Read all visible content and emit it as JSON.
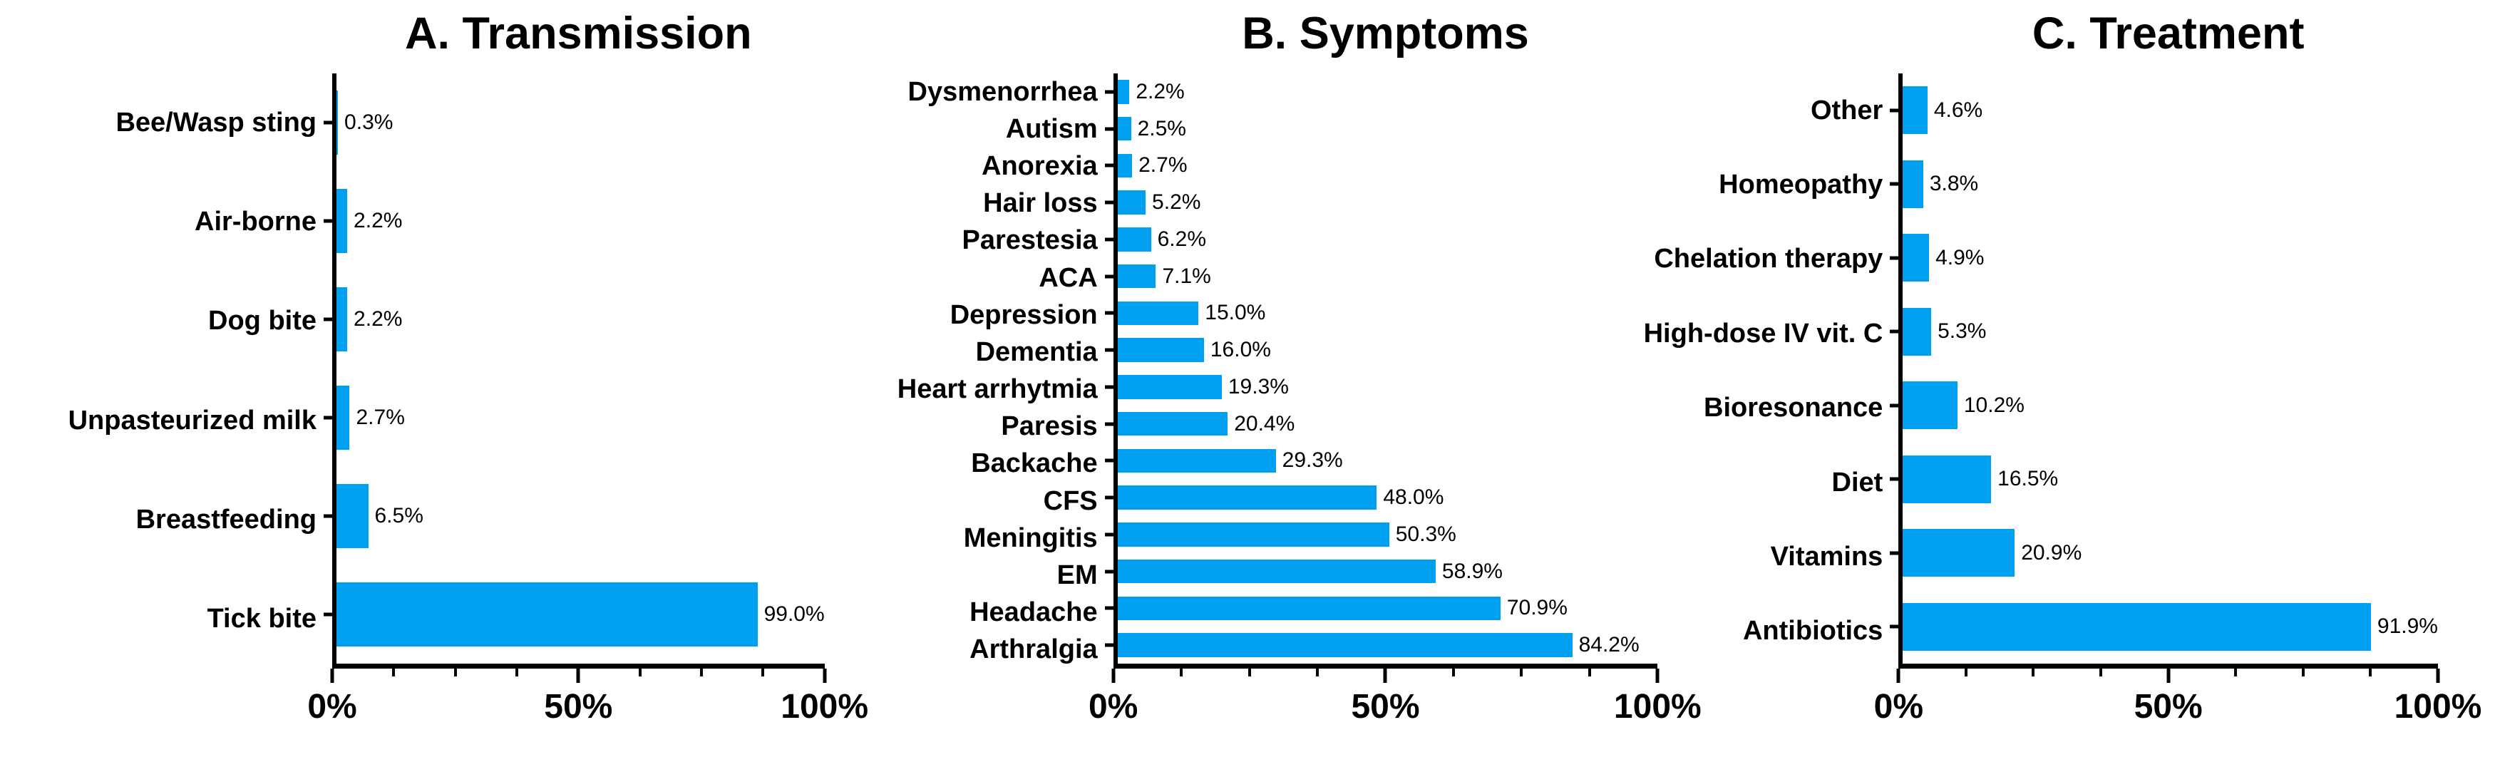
{
  "figure": {
    "bar_color": "#00A0F0",
    "axis_color": "#000000",
    "background_color": "#ffffff"
  },
  "chart_data": [
    {
      "type": "bar",
      "orientation": "horizontal",
      "title": "A. Transmission",
      "categories": [
        "Bee/Wasp sting",
        "Air-borne",
        "Dog bite",
        "Unpasteurized milk",
        "Breastfeeding",
        "Tick bite"
      ],
      "values": [
        0.3,
        2.2,
        2.2,
        2.7,
        6.5,
        99.0
      ],
      "data_labels": [
        "0.3%",
        "2.2%",
        "2.2%",
        "2.7%",
        "6.5%",
        "99.0%"
      ],
      "xlabel": "",
      "ylabel": "",
      "xlim": [
        0,
        100
      ],
      "grid": false,
      "bar_color": "#00A0F0",
      "x_ticks": [
        {
          "pos": 0,
          "label": "0%"
        },
        {
          "pos": 50,
          "label": "50%"
        },
        {
          "pos": 100,
          "label": "100%"
        }
      ],
      "minor_tick_positions": [
        12.5,
        25,
        37.5,
        62.5,
        75,
        87.5
      ]
    },
    {
      "type": "bar",
      "orientation": "horizontal",
      "title": "B. Symptoms",
      "categories": [
        "Dysmenorrhea",
        "Autism",
        "Anorexia",
        "Hair loss",
        "Parestesia",
        "ACA",
        "Depression",
        "Dementia",
        "Heart arrhytmia",
        "Paresis",
        "Backache",
        "CFS",
        "Meningitis",
        "EM",
        "Headache",
        "Arthralgia"
      ],
      "values": [
        2.2,
        2.5,
        2.7,
        5.2,
        6.2,
        7.1,
        15.0,
        16.0,
        19.3,
        20.4,
        29.3,
        48.0,
        50.3,
        58.9,
        70.9,
        84.2
      ],
      "data_labels": [
        "2.2%",
        "2.5%",
        "2.7%",
        "5.2%",
        "6.2%",
        "7.1%",
        "15.0%",
        "16.0%",
        "19.3%",
        "20.4%",
        "29.3%",
        "48.0%",
        "50.3%",
        "58.9%",
        "70.9%",
        "84.2%"
      ],
      "xlabel": "",
      "ylabel": "",
      "xlim": [
        0,
        100
      ],
      "grid": false,
      "bar_color": "#00A0F0",
      "x_ticks": [
        {
          "pos": 0,
          "label": "0%"
        },
        {
          "pos": 50,
          "label": "50%"
        },
        {
          "pos": 100,
          "label": "100%"
        }
      ],
      "minor_tick_positions": [
        12.5,
        25,
        37.5,
        62.5,
        75,
        87.5
      ]
    },
    {
      "type": "bar",
      "orientation": "horizontal",
      "title": "C. Treatment",
      "categories": [
        "Other",
        "Homeopathy",
        "Chelation therapy",
        "High-dose IV vit. C",
        "Bioresonance",
        "Diet",
        "Vitamins",
        "Antibiotics"
      ],
      "values": [
        4.6,
        3.8,
        4.9,
        5.3,
        10.2,
        16.5,
        20.9,
        91.9
      ],
      "data_labels": [
        "4.6%",
        "3.8%",
        "4.9%",
        "5.3%",
        "10.2%",
        "16.5%",
        "20.9%",
        "91.9%"
      ],
      "xlabel": "",
      "ylabel": "",
      "xlim": [
        0,
        100
      ],
      "grid": false,
      "bar_color": "#00A0F0",
      "x_ticks": [
        {
          "pos": 0,
          "label": "0%"
        },
        {
          "pos": 50,
          "label": "50%"
        },
        {
          "pos": 100,
          "label": "100%"
        }
      ],
      "minor_tick_positions": [
        12.5,
        25,
        37.5,
        62.5,
        75,
        87.5
      ]
    }
  ]
}
